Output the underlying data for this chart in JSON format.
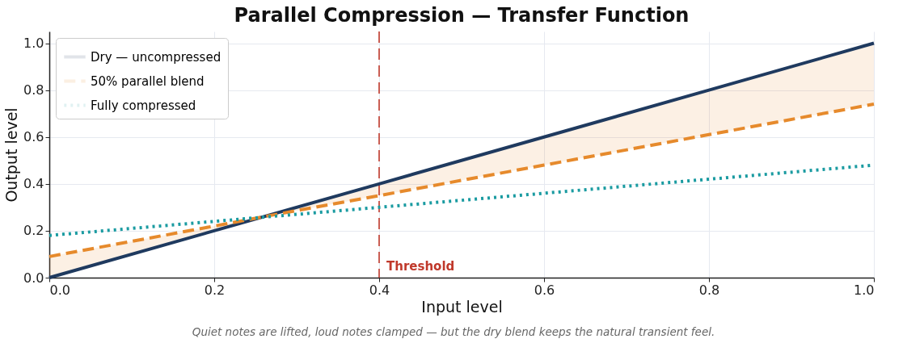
{
  "chart_data": {
    "type": "line",
    "title": "Parallel Compression — Transfer Function",
    "xlabel": "Input level",
    "ylabel": "Output level",
    "xlim": [
      0,
      1
    ],
    "ylim": [
      0,
      1.05
    ],
    "xticks": [
      {
        "value": 0,
        "label": "0.0"
      },
      0.2,
      0.4,
      0.6,
      0.8,
      {
        "value": 1,
        "label": "1.0"
      }
    ],
    "yticks": [
      {
        "value": 0,
        "label": "0.0"
      },
      0.2,
      0.4,
      0.6,
      0.8,
      {
        "value": 1,
        "label": "1.0"
      }
    ],
    "grid": true,
    "legend": "top left",
    "series": [
      {
        "name": "Dry — uncompressed",
        "color": "#1f3a5f",
        "line_style": "solid",
        "x": [
          0,
          0.2,
          0.4,
          0.6,
          0.8,
          1.0
        ],
        "values": [
          0,
          0.2,
          0.4,
          0.6,
          0.8,
          1.0
        ]
      },
      {
        "name": "50% parallel blend",
        "color": "#e68a2c",
        "line_style": "dashed",
        "x": [
          0,
          0.2,
          0.26,
          0.4,
          0.6,
          0.8,
          1.0
        ],
        "values": [
          0.09,
          0.22,
          0.26,
          0.35,
          0.48,
          0.61,
          0.74
        ],
        "lower": [
          0,
          0.2,
          0.26,
          0.35,
          0.48,
          0.61,
          0.74
        ],
        "upper": [
          0.09,
          0.22,
          0.26,
          0.4,
          0.6,
          0.8,
          1.0
        ]
      },
      {
        "name": "Fully compressed",
        "color": "#1a9ba1",
        "line_style": "dotted",
        "x": [
          0,
          0.2,
          0.4,
          0.6,
          0.8,
          1.0
        ],
        "values": [
          0.18,
          0.24,
          0.3,
          0.36,
          0.42,
          0.48
        ]
      }
    ],
    "ref_lines": [
      {
        "axis": "x",
        "value": 0.4,
        "label": "Threshold",
        "color": "#c0392b",
        "line_style": "dashed"
      }
    ],
    "annotations": [
      "Quiet notes are lifted, loud notes clamped — but the dry blend keeps the natural transient feel."
    ]
  }
}
